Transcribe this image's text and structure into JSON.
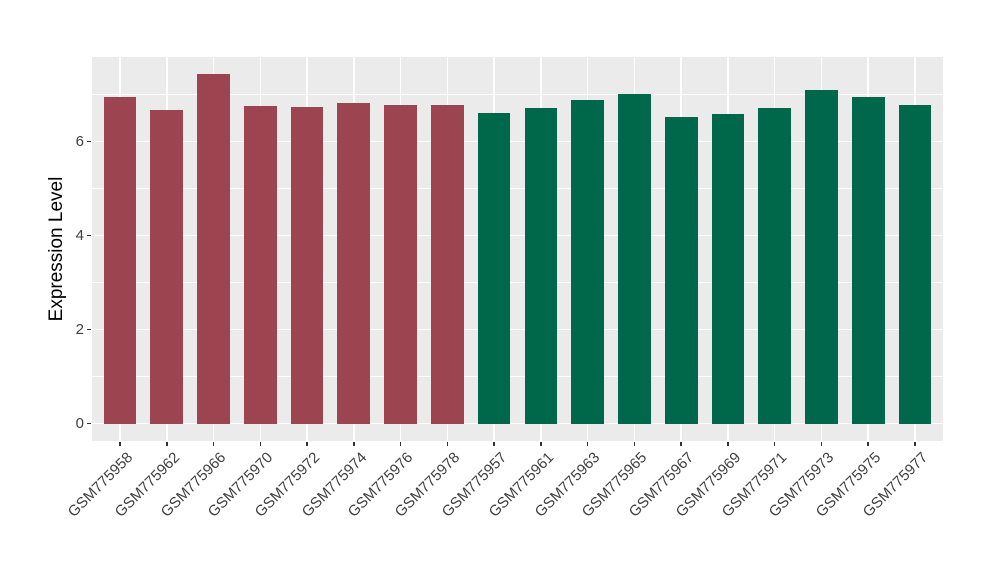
{
  "chart_data": {
    "type": "bar",
    "title": "",
    "xlabel": "",
    "ylabel": "Expression Level",
    "categories": [
      "GSM775958",
      "GSM775962",
      "GSM775966",
      "GSM775970",
      "GSM775972",
      "GSM775974",
      "GSM775976",
      "GSM775978",
      "GSM775957",
      "GSM775961",
      "GSM775963",
      "GSM775965",
      "GSM775967",
      "GSM775969",
      "GSM775971",
      "GSM775973",
      "GSM775975",
      "GSM775977"
    ],
    "values": [
      6.96,
      6.68,
      7.43,
      6.76,
      6.74,
      6.82,
      6.79,
      6.78,
      6.62,
      6.71,
      6.89,
      7.01,
      6.53,
      6.58,
      6.71,
      7.1,
      6.94,
      6.79
    ],
    "bar_colors": [
      "#9C4450",
      "#9C4450",
      "#9C4450",
      "#9C4450",
      "#9C4450",
      "#9C4450",
      "#9C4450",
      "#9C4450",
      "#00684A",
      "#00684A",
      "#00684A",
      "#00684A",
      "#00684A",
      "#00684A",
      "#00684A",
      "#00684A",
      "#00684A",
      "#00684A"
    ],
    "group_colors": {
      "group1": "#9C4450",
      "group2": "#00684A"
    },
    "y_ticks": [
      0,
      2,
      4,
      6
    ],
    "y_minor_ticks": [
      1,
      3,
      5,
      7
    ],
    "ylim": [
      0,
      7.8
    ],
    "grid": true,
    "legend_position": "none",
    "panel_background": "#EBEBEB",
    "grid_color": "#FFFFFF",
    "tick_color": "#333333",
    "tick_label_color": "#404040"
  }
}
